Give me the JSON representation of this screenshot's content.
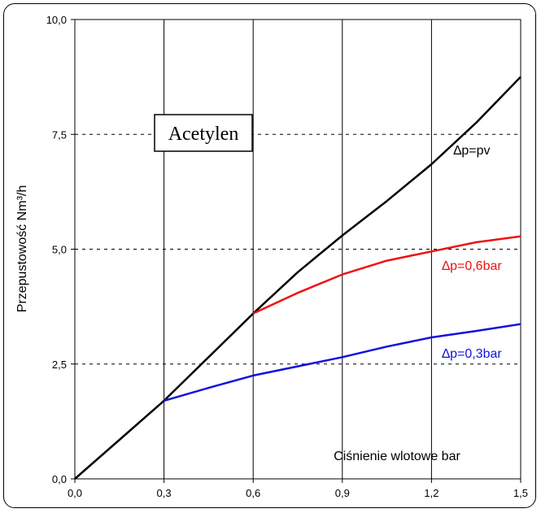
{
  "chart_data": {
    "type": "line",
    "title": "Acetylen",
    "xlabel": "Ciśnienie wlotowe bar",
    "ylabel": "Przepustowość Nm³/h",
    "xlim": [
      0,
      1.5
    ],
    "ylim": [
      0,
      10
    ],
    "x_ticks": [
      "0,0",
      "0,3",
      "0,6",
      "0,9",
      "1,2",
      "1,5"
    ],
    "y_ticks": [
      "0,0",
      "2,5",
      "5,0",
      "7,5",
      "10,0"
    ],
    "grid": {
      "vertical": "solid",
      "horizontal": "dashed"
    },
    "series": [
      {
        "name": "∆p=pv",
        "color": "#000000",
        "x": [
          0,
          0.15,
          0.3,
          0.45,
          0.6,
          0.75,
          0.9,
          1.05,
          1.2,
          1.35,
          1.5
        ],
        "y": [
          0,
          0.85,
          1.7,
          2.65,
          3.6,
          4.5,
          5.3,
          6.05,
          6.85,
          7.75,
          8.75
        ]
      },
      {
        "name": "∆p=0,6bar",
        "color": "#ee1111",
        "x": [
          0.6,
          0.75,
          0.9,
          1.05,
          1.2,
          1.35,
          1.5
        ],
        "y": [
          3.6,
          4.05,
          4.45,
          4.75,
          4.95,
          5.15,
          5.28
        ]
      },
      {
        "name": "∆p=0,3bar",
        "color": "#1111dd",
        "x": [
          0.3,
          0.45,
          0.6,
          0.75,
          0.9,
          1.05,
          1.2,
          1.35,
          1.5
        ],
        "y": [
          1.7,
          1.98,
          2.25,
          2.45,
          2.65,
          2.88,
          3.08,
          3.22,
          3.37
        ]
      }
    ]
  }
}
